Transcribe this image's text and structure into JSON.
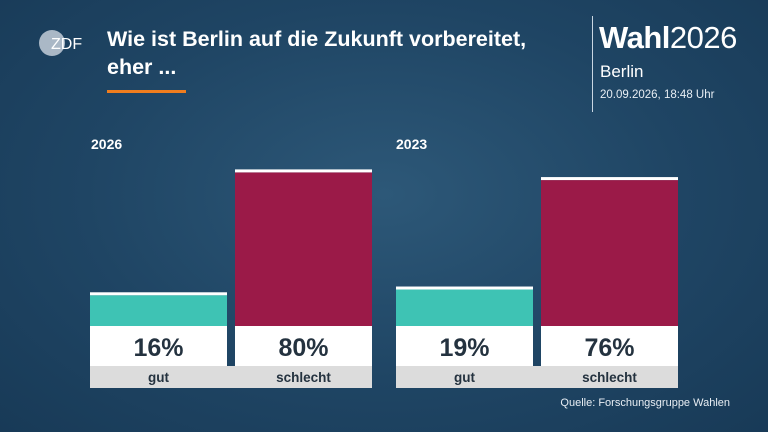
{
  "header": {
    "logo_text": "ZDF",
    "title": "Wie ist Berlin auf die Zukunft vorbereitet, eher ...",
    "brand_bold": "Wahl",
    "brand_year": "2026",
    "brand_region": "Berlin",
    "timestamp": "20.09.2026, 18:48 Uhr"
  },
  "source": "Quelle: Forschungsgruppe Wahlen",
  "colors": {
    "gut": "#3ec3b4",
    "schlecht": "#9b1a48",
    "accent": "#f07d1e",
    "background": "#1f4564"
  },
  "chart_data": {
    "type": "bar",
    "ylim": [
      0,
      100
    ],
    "groups": [
      {
        "name": "2026",
        "bars": [
          {
            "category": "gut",
            "value": 16,
            "label": "16%"
          },
          {
            "category": "schlecht",
            "value": 80,
            "label": "80%"
          }
        ]
      },
      {
        "name": "2023",
        "bars": [
          {
            "category": "gut",
            "value": 19,
            "label": "19%"
          },
          {
            "category": "schlecht",
            "value": 76,
            "label": "76%"
          }
        ]
      }
    ]
  }
}
